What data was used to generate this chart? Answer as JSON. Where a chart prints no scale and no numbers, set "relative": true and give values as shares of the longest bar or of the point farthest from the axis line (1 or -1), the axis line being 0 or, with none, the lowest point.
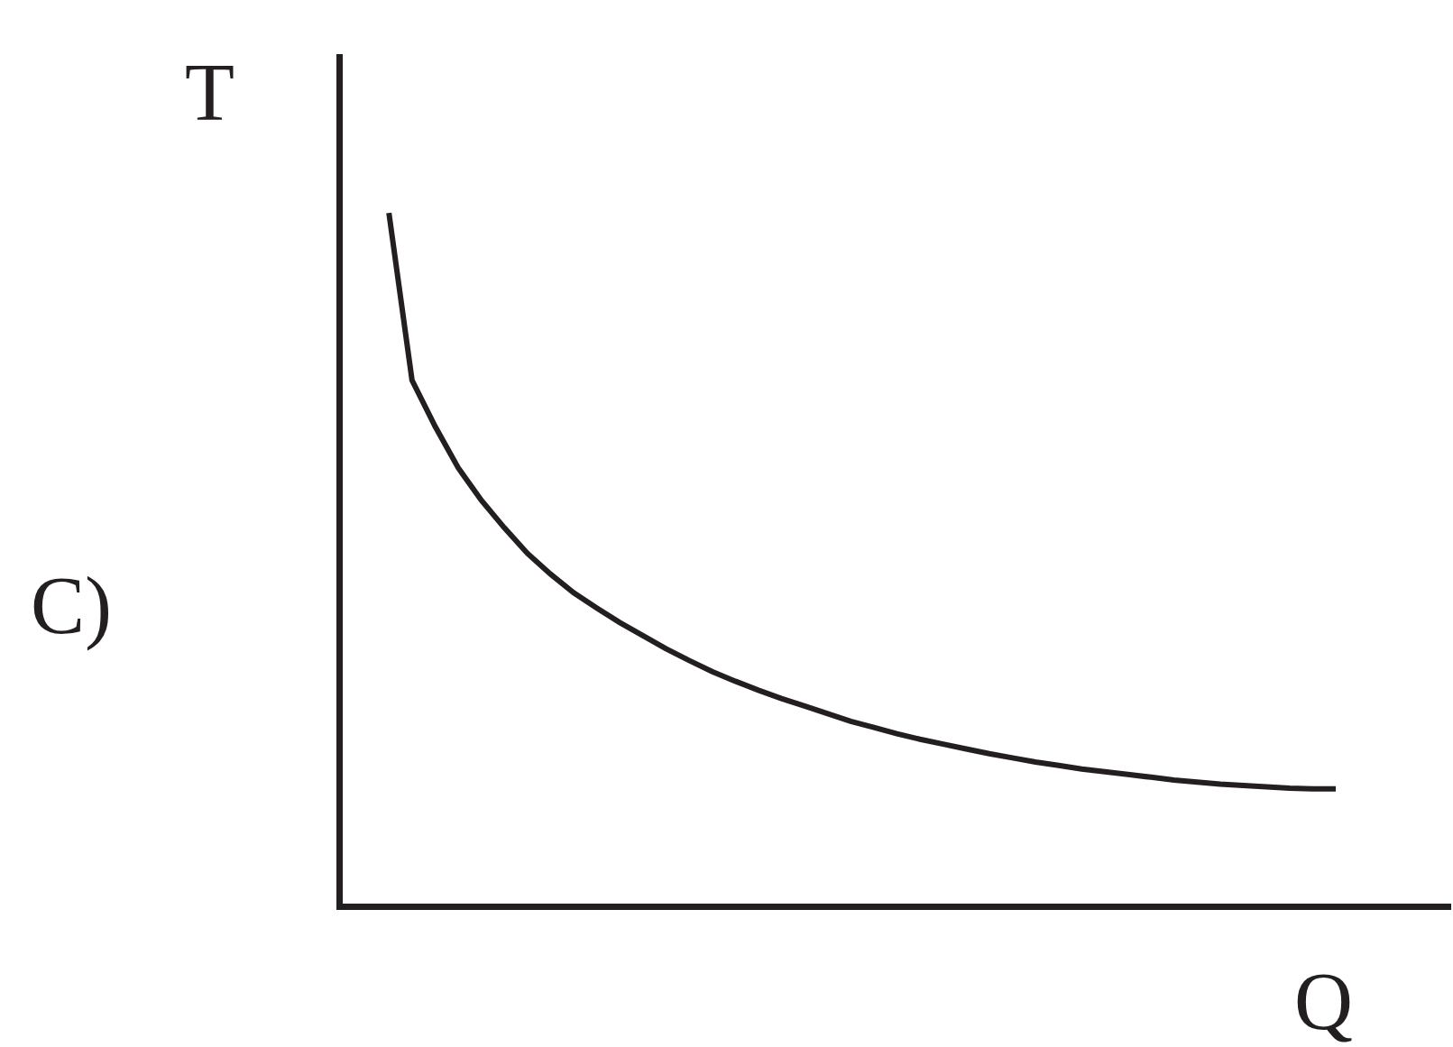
{
  "chart_data": {
    "type": "line",
    "relative": true,
    "xlabel": "Q",
    "ylabel": "T",
    "annotations": [
      "C)"
    ],
    "color": "#231f20",
    "categories": [
      null,
      null,
      null,
      null,
      null,
      null,
      null,
      null,
      null,
      null,
      null,
      null,
      null,
      null,
      null,
      null,
      null,
      null,
      null,
      null,
      null,
      null,
      null,
      null,
      null,
      null,
      null,
      null,
      null,
      null,
      null,
      null,
      null,
      null,
      null,
      null,
      null,
      null,
      null,
      null,
      null,
      null,
      null,
      null,
      null,
      null,
      null,
      null,
      null
    ],
    "values": [
      null,
      null,
      1.0,
      0.758,
      0.691,
      0.631,
      0.584,
      0.544,
      0.507,
      0.477,
      0.45,
      0.428,
      0.407,
      0.388,
      0.369,
      0.352,
      0.336,
      0.322,
      0.309,
      0.297,
      0.286,
      0.275,
      0.264,
      0.255,
      0.246,
      0.238,
      0.231,
      0.224,
      0.217,
      0.211,
      0.205,
      0.2,
      0.195,
      0.191,
      0.187,
      0.183,
      0.179,
      0.176,
      0.173,
      0.171,
      0.169,
      0.167,
      0.166,
      0.166,
      null,
      null,
      null,
      null,
      null
    ],
    "grid": false,
    "legend": false,
    "marker": "none",
    "line_style": "solid"
  }
}
